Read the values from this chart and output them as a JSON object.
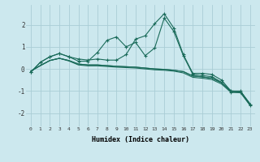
{
  "xlabel": "Humidex (Indice chaleur)",
  "ylabel": "",
  "xlim": [
    -0.5,
    23.5
  ],
  "ylim": [
    -2.6,
    2.9
  ],
  "background_color": "#cce8ee",
  "grid_color": "#aacdd6",
  "line_color": "#1a6b5a",
  "x": [
    0,
    1,
    2,
    3,
    4,
    5,
    6,
    7,
    8,
    9,
    10,
    11,
    12,
    13,
    14,
    15,
    16,
    17,
    18,
    19,
    20,
    21,
    22,
    23
  ],
  "series_jagged1": [
    -0.15,
    0.3,
    0.55,
    0.7,
    0.55,
    0.35,
    0.35,
    0.75,
    1.3,
    1.45,
    1.0,
    1.2,
    0.6,
    0.95,
    2.3,
    1.7,
    0.6,
    -0.25,
    -0.3,
    -0.35,
    -0.6,
    -1.05,
    -1.05,
    -1.65
  ],
  "series_jagged2": [
    -0.15,
    0.3,
    0.55,
    0.7,
    0.55,
    0.45,
    0.4,
    0.45,
    0.4,
    0.4,
    0.65,
    1.35,
    1.5,
    2.05,
    2.5,
    1.85,
    0.65,
    -0.2,
    -0.2,
    -0.25,
    -0.5,
    -1.0,
    -1.0,
    -1.6
  ],
  "series_linear1": [
    -0.1,
    0.15,
    0.38,
    0.48,
    0.38,
    0.22,
    0.18,
    0.18,
    0.15,
    0.12,
    0.1,
    0.08,
    0.04,
    0.0,
    -0.02,
    -0.06,
    -0.12,
    -0.32,
    -0.36,
    -0.42,
    -0.62,
    -1.0,
    -1.02,
    -1.58
  ],
  "series_linear2": [
    -0.1,
    0.15,
    0.38,
    0.48,
    0.38,
    0.22,
    0.18,
    0.18,
    0.15,
    0.12,
    0.1,
    0.08,
    0.04,
    0.0,
    -0.02,
    -0.06,
    -0.12,
    -0.32,
    -0.36,
    -0.42,
    -0.62,
    -1.0,
    -1.02,
    -1.58
  ],
  "series_linear3": [
    -0.1,
    0.15,
    0.38,
    0.48,
    0.36,
    0.18,
    0.14,
    0.14,
    0.11,
    0.08,
    0.06,
    0.04,
    0.0,
    -0.04,
    -0.06,
    -0.1,
    -0.18,
    -0.38,
    -0.42,
    -0.48,
    -0.68,
    -1.06,
    -1.08,
    -1.64
  ],
  "yticks": [
    -2,
    -1,
    0,
    1,
    2
  ],
  "xticks": [
    0,
    1,
    2,
    3,
    4,
    5,
    6,
    7,
    8,
    9,
    10,
    11,
    12,
    13,
    14,
    15,
    16,
    17,
    18,
    19,
    20,
    21,
    22,
    23
  ]
}
